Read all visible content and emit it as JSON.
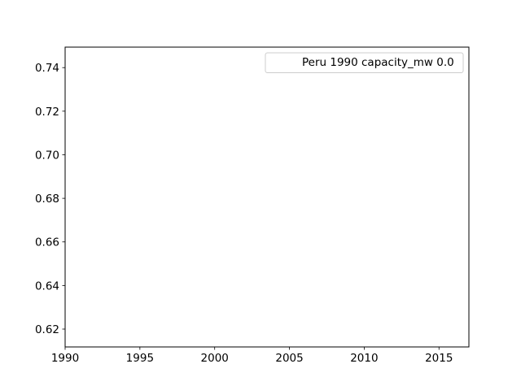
{
  "chart_data": {
    "type": "line",
    "title": "",
    "xlabel": "",
    "ylabel": "",
    "xlim": [
      1990,
      2017
    ],
    "ylim": [
      0.6118,
      0.7494
    ],
    "x_ticks": [
      1990,
      1995,
      2000,
      2005,
      2010,
      2015
    ],
    "y_ticks": [
      0.62,
      0.64,
      0.66,
      0.68,
      0.7,
      0.72,
      0.74
    ],
    "x_tick_labels": [
      "1990",
      "1995",
      "2000",
      "2005",
      "2010",
      "2015"
    ],
    "y_tick_labels": [
      "0.62",
      "0.64",
      "0.66",
      "0.68",
      "0.70",
      "0.72",
      "0.74"
    ],
    "grid": false,
    "legend": {
      "placement": "top-right",
      "entries": [
        "Peru 1990 capacity_mw 0.0"
      ]
    },
    "series": [
      {
        "name": "Peru 1990 capacity_mw 0.0",
        "x": [],
        "y": []
      }
    ]
  }
}
